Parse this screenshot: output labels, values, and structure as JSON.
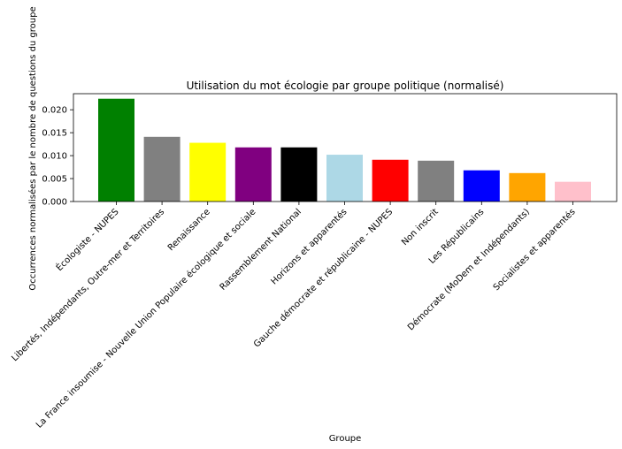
{
  "chart_data": {
    "type": "bar",
    "title": "Utilisation du mot écologie par groupe politique (normalisé)",
    "xlabel": "Groupe",
    "ylabel": "Occurrences normalisées par le nombre de questions du groupe",
    "ylim": [
      0,
      0.0235
    ],
    "yticks": [
      "0.000",
      "0.005",
      "0.010",
      "0.015",
      "0.020"
    ],
    "grid": false,
    "categories": [
      "Écologiste - NUPES",
      "Libertés, Indépendants, Outre-mer et Territoires",
      "Renaissance",
      "La France insoumise - Nouvelle Union Populaire écologique et sociale",
      "Rassemblement National",
      "Horizons et apparentés",
      "Gauche démocrate et républicaine - NUPES",
      "Non inscrit",
      "Les Républicains",
      "Démocrate (MoDem et Indépendants)",
      "Socialistes et apparentés"
    ],
    "values": [
      0.0224,
      0.0141,
      0.0128,
      0.0118,
      0.0118,
      0.0102,
      0.0091,
      0.0089,
      0.0068,
      0.0062,
      0.0043
    ],
    "colors": [
      "#008000",
      "#808080",
      "#ffff00",
      "#800080",
      "#000000",
      "#add8e6",
      "#ff0000",
      "#808080",
      "#0000ff",
      "#ffa500",
      "#ffc0cb"
    ]
  }
}
